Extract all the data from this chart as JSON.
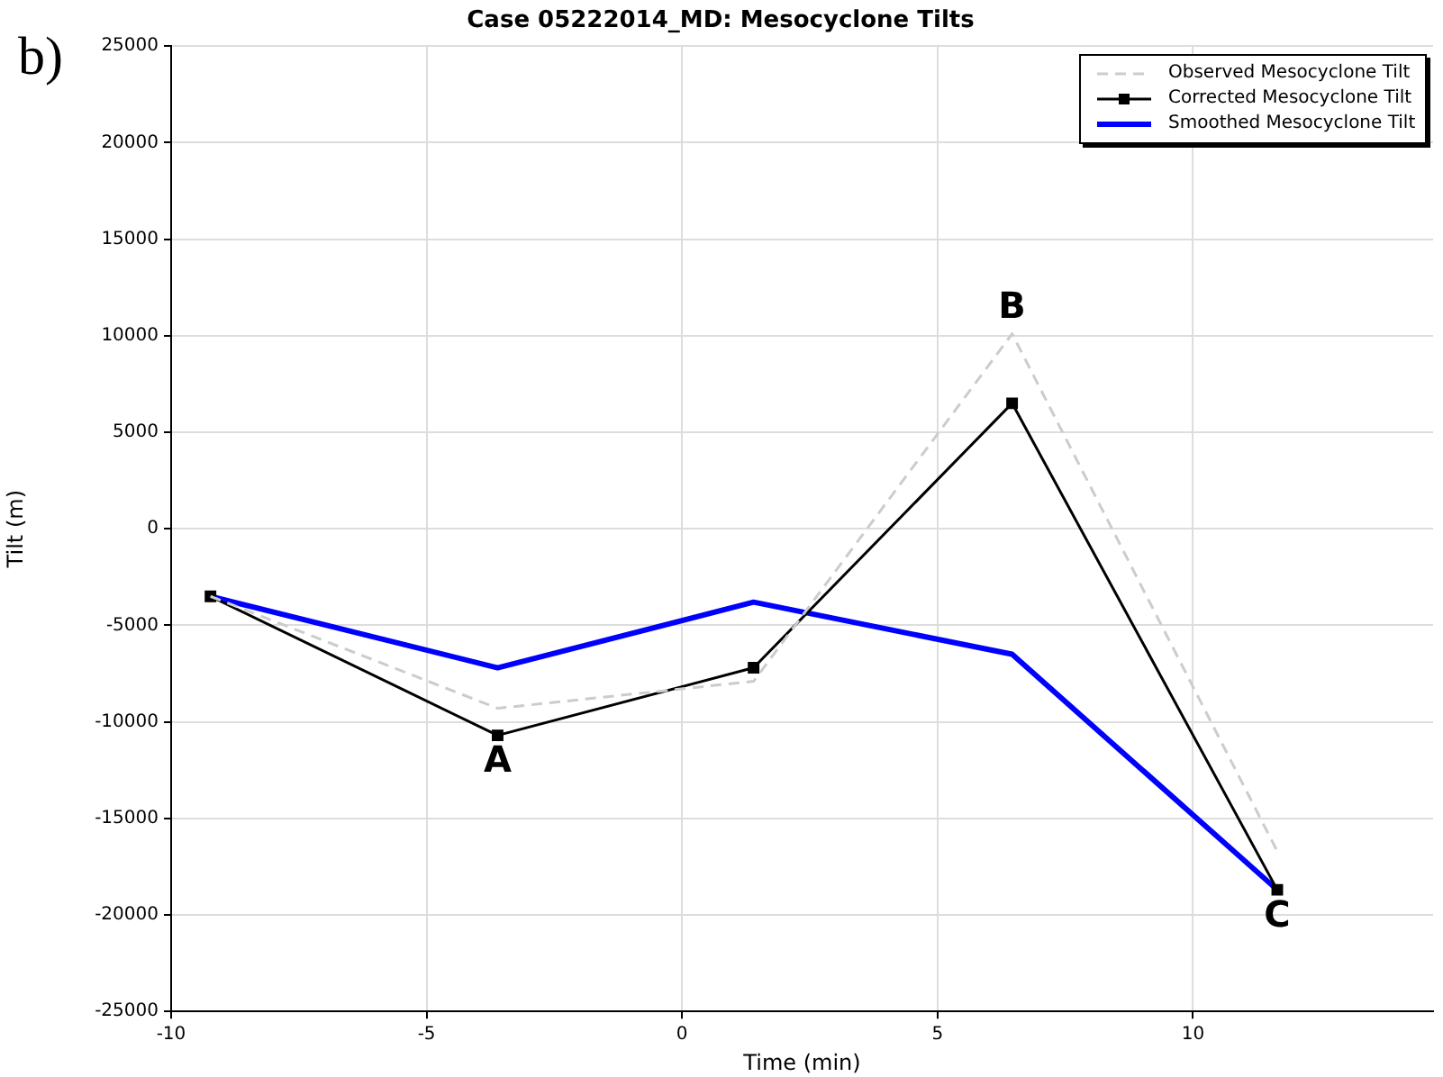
{
  "chart_data": {
    "type": "line",
    "title": "Case 05222014_MD: Mesocyclone Tilts",
    "xlabel": "Time (min)",
    "ylabel": "Tilt (m)",
    "x": [
      -9.23,
      -3.61,
      1.4,
      6.46,
      11.65
    ],
    "series": [
      {
        "name": "Observed Mesocyclone Tilt",
        "color": "#cccccc",
        "line_style": "dashed",
        "marker": "none",
        "values": [
          -3500,
          -9300,
          -7900,
          10100,
          -16700
        ]
      },
      {
        "name": "Corrected Mesocyclone Tilt",
        "color": "#000000",
        "line_style": "solid",
        "marker": "square",
        "values": [
          -3500,
          -10700,
          -7200,
          6500,
          -18700
        ]
      },
      {
        "name": "Smoothed Mesocyclone Tilt",
        "color": "#0000ff",
        "line_style": "solid",
        "marker": "none",
        "values": [
          -3500,
          -7200,
          -3800,
          -6500,
          -18700
        ]
      }
    ],
    "xlim": [
      -10,
      14.7
    ],
    "xticks": [
      -10,
      -5,
      0,
      5,
      10
    ],
    "ylim": [
      -25000,
      25000
    ],
    "yticks": [
      -25000,
      -20000,
      -15000,
      -10000,
      -5000,
      0,
      5000,
      10000,
      15000,
      20000,
      25000
    ],
    "grid": true,
    "legend": "top right",
    "annotations": [
      "b)",
      {
        "text": "A",
        "x": -3.61,
        "y": -10700
      },
      {
        "text": "B",
        "x": 6.46,
        "y": 10100
      },
      {
        "text": "C",
        "x": 11.65,
        "y": -18700
      }
    ]
  }
}
